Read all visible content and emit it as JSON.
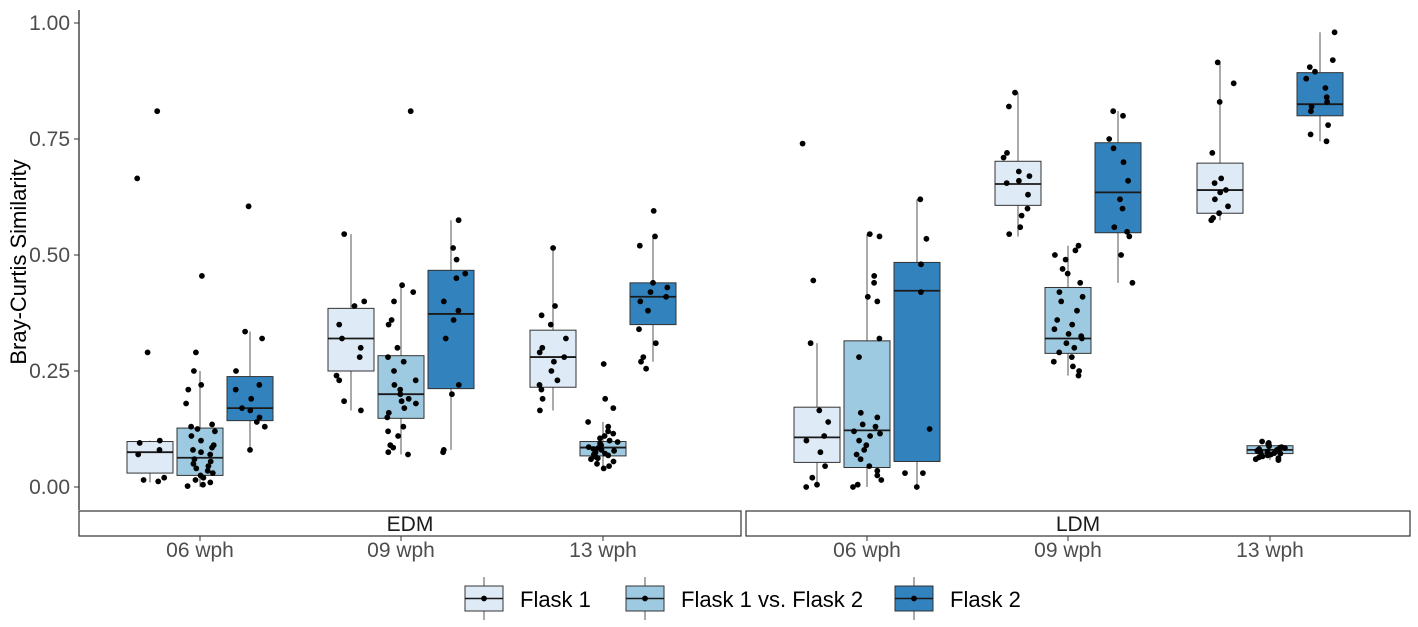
{
  "chart_data": {
    "type": "box",
    "ylabel": "Bray-Curtis Similarity",
    "xlabel": "",
    "ylim": [
      -0.08,
      1.03
    ],
    "yticks": [
      "0.00",
      "0.25",
      "0.50",
      "0.75",
      "1.00"
    ],
    "ytick_values": [
      0,
      0.25,
      0.5,
      0.75,
      1.0
    ],
    "panels": [
      "EDM",
      "LDM"
    ],
    "categories": [
      "06 wph",
      "09 wph",
      "13 wph"
    ],
    "legend": {
      "position": "bottom",
      "entries": [
        {
          "name": "Flask 1",
          "color": "#deebf7"
        },
        {
          "name": "Flask 1 vs. Flask 2",
          "color": "#9ecae1"
        },
        {
          "name": "Flask 2",
          "color": "#3182bd"
        }
      ]
    },
    "groups": [
      {
        "panel": "EDM",
        "category": "06 wph",
        "series": "Flask 1",
        "q1": 0.03,
        "median": 0.075,
        "q3": 0.098,
        "whisker_low": 0.01,
        "whisker_high": 0.1,
        "points": [
          0.81,
          0.665,
          0.29,
          0.1,
          0.095,
          0.08,
          0.07,
          0.02,
          0.015,
          0.012
        ]
      },
      {
        "panel": "EDM",
        "category": "06 wph",
        "series": "Flask 1 vs. Flask 2",
        "q1": 0.025,
        "median": 0.063,
        "q3": 0.127,
        "whisker_low": 0.0,
        "whisker_high": 0.25,
        "points": [
          0.455,
          0.29,
          0.25,
          0.22,
          0.21,
          0.18,
          0.135,
          0.13,
          0.125,
          0.12,
          0.11,
          0.1,
          0.09,
          0.085,
          0.08,
          0.075,
          0.07,
          0.06,
          0.055,
          0.05,
          0.045,
          0.04,
          0.035,
          0.03,
          0.025,
          0.02,
          0.015,
          0.01,
          0.005,
          0.002
        ]
      },
      {
        "panel": "EDM",
        "category": "06 wph",
        "series": "Flask 2",
        "q1": 0.143,
        "median": 0.17,
        "q3": 0.238,
        "whisker_low": 0.08,
        "whisker_high": 0.335,
        "points": [
          0.605,
          0.335,
          0.32,
          0.25,
          0.22,
          0.21,
          0.19,
          0.17,
          0.165,
          0.15,
          0.14,
          0.13,
          0.08
        ]
      },
      {
        "panel": "EDM",
        "category": "09 wph",
        "series": "Flask 1",
        "q1": 0.25,
        "median": 0.32,
        "q3": 0.385,
        "whisker_low": 0.165,
        "whisker_high": 0.545,
        "points": [
          0.545,
          0.4,
          0.39,
          0.35,
          0.32,
          0.3,
          0.28,
          0.24,
          0.23,
          0.185,
          0.165
        ]
      },
      {
        "panel": "EDM",
        "category": "09 wph",
        "series": "Flask 1 vs. Flask 2",
        "q1": 0.148,
        "median": 0.2,
        "q3": 0.283,
        "whisker_low": 0.07,
        "whisker_high": 0.435,
        "points": [
          0.81,
          0.435,
          0.42,
          0.4,
          0.36,
          0.35,
          0.3,
          0.28,
          0.27,
          0.25,
          0.23,
          0.22,
          0.21,
          0.2,
          0.19,
          0.185,
          0.18,
          0.17,
          0.16,
          0.15,
          0.13,
          0.12,
          0.11,
          0.09,
          0.085,
          0.075,
          0.07
        ]
      },
      {
        "panel": "EDM",
        "category": "09 wph",
        "series": "Flask 2",
        "q1": 0.212,
        "median": 0.373,
        "q3": 0.467,
        "whisker_low": 0.08,
        "whisker_high": 0.575,
        "points": [
          0.575,
          0.515,
          0.49,
          0.46,
          0.45,
          0.4,
          0.38,
          0.36,
          0.32,
          0.22,
          0.2,
          0.08,
          0.075
        ]
      },
      {
        "panel": "EDM",
        "category": "13 wph",
        "series": "Flask 1",
        "q1": 0.215,
        "median": 0.28,
        "q3": 0.338,
        "whisker_low": 0.165,
        "whisker_high": 0.515,
        "points": [
          0.515,
          0.39,
          0.37,
          0.35,
          0.32,
          0.3,
          0.29,
          0.28,
          0.27,
          0.25,
          0.23,
          0.22,
          0.21,
          0.19,
          0.165
        ]
      },
      {
        "panel": "EDM",
        "category": "13 wph",
        "series": "Flask 1 vs. Flask 2",
        "q1": 0.067,
        "median": 0.085,
        "q3": 0.098,
        "whisker_low": 0.038,
        "whisker_high": 0.14,
        "points": [
          0.265,
          0.19,
          0.17,
          0.14,
          0.13,
          0.12,
          0.115,
          0.11,
          0.105,
          0.1,
          0.097,
          0.094,
          0.09,
          0.088,
          0.086,
          0.084,
          0.082,
          0.08,
          0.078,
          0.075,
          0.072,
          0.07,
          0.068,
          0.065,
          0.062,
          0.06,
          0.055,
          0.05,
          0.045,
          0.04
        ]
      },
      {
        "panel": "EDM",
        "category": "13 wph",
        "series": "Flask 2",
        "q1": 0.35,
        "median": 0.41,
        "q3": 0.44,
        "whisker_low": 0.27,
        "whisker_high": 0.54,
        "points": [
          0.595,
          0.54,
          0.52,
          0.44,
          0.43,
          0.42,
          0.41,
          0.4,
          0.38,
          0.34,
          0.31,
          0.28,
          0.27,
          0.255
        ]
      },
      {
        "panel": "LDM",
        "category": "06 wph",
        "series": "Flask 1",
        "q1": 0.053,
        "median": 0.107,
        "q3": 0.172,
        "whisker_low": 0.0,
        "whisker_high": 0.31,
        "points": [
          0.74,
          0.445,
          0.31,
          0.165,
          0.14,
          0.11,
          0.1,
          0.075,
          0.045,
          0.02,
          0.005,
          0.0
        ]
      },
      {
        "panel": "LDM",
        "category": "06 wph",
        "series": "Flask 1 vs. Flask 2",
        "q1": 0.042,
        "median": 0.122,
        "q3": 0.315,
        "whisker_low": 0.0,
        "whisker_high": 0.545,
        "points": [
          0.545,
          0.54,
          0.455,
          0.44,
          0.41,
          0.4,
          0.32,
          0.28,
          0.16,
          0.15,
          0.135,
          0.13,
          0.12,
          0.115,
          0.11,
          0.1,
          0.09,
          0.08,
          0.07,
          0.06,
          0.045,
          0.035,
          0.025,
          0.015,
          0.005,
          0.0
        ]
      },
      {
        "panel": "LDM",
        "category": "06 wph",
        "series": "Flask 2",
        "q1": 0.055,
        "median": 0.423,
        "q3": 0.484,
        "whisker_low": 0.0,
        "whisker_high": 0.62,
        "points": [
          0.62,
          0.535,
          0.48,
          0.42,
          0.125,
          0.03,
          0.03,
          0.0
        ]
      },
      {
        "panel": "LDM",
        "category": "09 wph",
        "series": "Flask 1",
        "q1": 0.607,
        "median": 0.653,
        "q3": 0.702,
        "whisker_low": 0.54,
        "whisker_high": 0.85,
        "points": [
          0.85,
          0.82,
          0.72,
          0.71,
          0.68,
          0.67,
          0.66,
          0.655,
          0.63,
          0.6,
          0.585,
          0.56,
          0.545
        ]
      },
      {
        "panel": "LDM",
        "category": "09 wph",
        "series": "Flask 1 vs. Flask 2",
        "q1": 0.288,
        "median": 0.32,
        "q3": 0.43,
        "whisker_low": 0.24,
        "whisker_high": 0.52,
        "points": [
          0.52,
          0.51,
          0.5,
          0.49,
          0.47,
          0.46,
          0.44,
          0.42,
          0.41,
          0.4,
          0.38,
          0.36,
          0.35,
          0.34,
          0.33,
          0.325,
          0.32,
          0.31,
          0.3,
          0.29,
          0.28,
          0.27,
          0.26,
          0.25,
          0.24
        ]
      },
      {
        "panel": "LDM",
        "category": "09 wph",
        "series": "Flask 2",
        "q1": 0.548,
        "median": 0.635,
        "q3": 0.742,
        "whisker_low": 0.44,
        "whisker_high": 0.81,
        "points": [
          0.81,
          0.8,
          0.75,
          0.73,
          0.7,
          0.66,
          0.62,
          0.6,
          0.56,
          0.55,
          0.54,
          0.5,
          0.44
        ]
      },
      {
        "panel": "LDM",
        "category": "13 wph",
        "series": "Flask 1",
        "q1": 0.59,
        "median": 0.64,
        "q3": 0.698,
        "whisker_low": 0.575,
        "whisker_high": 0.915,
        "points": [
          0.915,
          0.87,
          0.83,
          0.72,
          0.665,
          0.655,
          0.64,
          0.635,
          0.62,
          0.605,
          0.59,
          0.58,
          0.575
        ]
      },
      {
        "panel": "LDM",
        "category": "13 wph",
        "series": "Flask 1 vs. Flask 2",
        "q1": 0.072,
        "median": 0.08,
        "q3": 0.089,
        "whisker_low": 0.058,
        "whisker_high": 0.098,
        "points": [
          0.098,
          0.095,
          0.093,
          0.09,
          0.088,
          0.086,
          0.085,
          0.084,
          0.082,
          0.08,
          0.079,
          0.078,
          0.076,
          0.075,
          0.073,
          0.072,
          0.07,
          0.068,
          0.066,
          0.064,
          0.062,
          0.06,
          0.058
        ]
      },
      {
        "panel": "LDM",
        "category": "13 wph",
        "series": "Flask 2",
        "q1": 0.8,
        "median": 0.825,
        "q3": 0.893,
        "whisker_low": 0.745,
        "whisker_high": 0.98,
        "points": [
          0.98,
          0.92,
          0.905,
          0.895,
          0.88,
          0.86,
          0.84,
          0.83,
          0.82,
          0.81,
          0.78,
          0.76,
          0.745
        ]
      }
    ]
  }
}
